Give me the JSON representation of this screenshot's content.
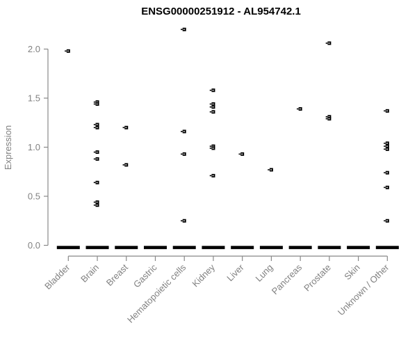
{
  "chart_data": {
    "type": "scatter",
    "title": "ENSG00000251912 - AL954742.1",
    "ylabel": "Expression",
    "xlabel": "",
    "yticks": [
      "0.0",
      "0.5",
      "1.0",
      "1.5",
      "2.0"
    ],
    "ylim": [
      0,
      2.2
    ],
    "grid": false,
    "legend": "none",
    "marker": "small-open-square",
    "point_color": "#000000",
    "axis_color": "#888888",
    "label_color": "#818181",
    "categories": [
      "Bladder",
      "Brain",
      "Breast",
      "Gastric",
      "Hematopoietic cells",
      "Kidney",
      "Liver",
      "Lung",
      "Pancreas",
      "Prostate",
      "Skin",
      "Unknown / Other"
    ],
    "series": [
      {
        "category": "Bladder",
        "values": [
          1.98
        ],
        "zero_cluster": true
      },
      {
        "category": "Brain",
        "values": [
          1.46,
          1.44,
          1.23,
          1.2,
          0.95,
          0.88,
          0.64,
          0.44,
          0.41
        ],
        "zero_cluster": true
      },
      {
        "category": "Breast",
        "values": [
          1.2,
          0.82
        ],
        "zero_cluster": true
      },
      {
        "category": "Gastric",
        "values": [],
        "zero_cluster": true
      },
      {
        "category": "Hematopoietic cells",
        "values": [
          2.2,
          1.16,
          0.93,
          0.25
        ],
        "zero_cluster": true
      },
      {
        "category": "Kidney",
        "values": [
          1.58,
          1.44,
          1.41,
          1.36,
          1.01,
          0.99,
          0.71
        ],
        "zero_cluster": true
      },
      {
        "category": "Liver",
        "values": [
          0.93
        ],
        "zero_cluster": true
      },
      {
        "category": "Lung",
        "values": [
          0.77
        ],
        "zero_cluster": true
      },
      {
        "category": "Pancreas",
        "values": [
          1.39
        ],
        "zero_cluster": true
      },
      {
        "category": "Prostate",
        "values": [
          2.06,
          1.31,
          1.29
        ],
        "zero_cluster": true
      },
      {
        "category": "Skin",
        "values": [],
        "zero_cluster": true
      },
      {
        "category": "Unknown / Other",
        "values": [
          1.37,
          1.04,
          1.01,
          0.98,
          0.74,
          0.59,
          0.25
        ],
        "zero_cluster": true
      }
    ]
  }
}
